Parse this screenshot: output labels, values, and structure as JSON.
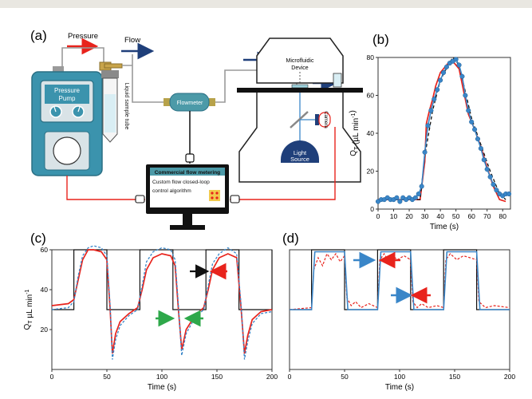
{
  "panels": {
    "a": "(a)",
    "b": "(b)",
    "c": "(c)",
    "d": "(d)"
  },
  "schematic": {
    "pressure_label": "Pressure",
    "flow_label": "Flow",
    "pump_label_1": "Pressure",
    "pump_label_2": "Pump",
    "tube_label": "Liquid sample tube",
    "flowmeter_label": "Flowmeter",
    "device_label_1": "Microfluidic",
    "device_label_2": "Device",
    "camera_label": "Camera",
    "light_label_1": "Light",
    "light_label_2": "Source",
    "controller_title": "Commercial flow metering",
    "controller_text_1": "Custom flow closed-loop",
    "controller_text_2": "control algorithm"
  },
  "colors": {
    "pump_body": "#3b93ad",
    "pump_dark": "#2a6f84",
    "screen": "#d9e3e7",
    "flowmeter": "#4c9aa8",
    "arrow_red": "#e8231c",
    "arrow_navy": "#1f3f7a",
    "blue_marker": "#3a86c8",
    "black": "#111111",
    "green_arrow": "#2ea84a"
  },
  "chart_data": [
    {
      "id": "b",
      "type": "line",
      "xlabel": "Time (s)",
      "ylabel": "Q",
      "ylabel_sub": "T",
      "ylabel_unit": " (µL min",
      "ylabel_exp": "-1",
      "ylabel_end": ")",
      "xlim": [
        0,
        85
      ],
      "ylim": [
        0,
        80
      ],
      "xticks": [
        0,
        10,
        20,
        30,
        40,
        50,
        60,
        70,
        80
      ],
      "yticks": [
        0,
        20,
        40,
        60,
        80
      ],
      "series": [
        {
          "style": "red",
          "x": [
            0,
            10,
            20,
            27,
            30,
            31,
            33,
            35,
            37,
            40,
            45,
            48,
            52,
            55,
            58,
            62,
            66,
            70,
            74,
            78,
            82
          ],
          "y": [
            5,
            5,
            5,
            5,
            25,
            45,
            52,
            58,
            65,
            72,
            77,
            78,
            74,
            62,
            50,
            42,
            33,
            22,
            12,
            5,
            4
          ]
        },
        {
          "style": "dashed-black",
          "x": [
            0,
            27,
            30,
            35,
            40,
            45,
            48,
            52,
            56,
            60,
            66,
            72,
            78,
            82
          ],
          "y": [
            5,
            5,
            28,
            52,
            68,
            76,
            80,
            76,
            62,
            48,
            34,
            20,
            8,
            5
          ]
        },
        {
          "style": "blue-markers",
          "x": [
            0,
            2,
            4,
            6,
            8,
            10,
            12,
            14,
            16,
            18,
            20,
            22,
            24,
            26,
            28,
            30,
            32,
            34,
            36,
            38,
            40,
            42,
            44,
            46,
            48,
            50,
            52,
            54,
            56,
            58,
            60,
            62,
            64,
            66,
            68,
            70,
            72,
            74,
            76,
            78,
            80,
            82,
            84
          ],
          "y": [
            4,
            5,
            5,
            6,
            5,
            5,
            6,
            4,
            6,
            5,
            6,
            5,
            6,
            8,
            12,
            30,
            44,
            52,
            58,
            63,
            68,
            72,
            75,
            77,
            78,
            79,
            76,
            70,
            60,
            52,
            46,
            42,
            37,
            32,
            26,
            21,
            17,
            13,
            10,
            8,
            7,
            8,
            8
          ]
        }
      ]
    },
    {
      "id": "c",
      "type": "line",
      "xlabel": "Time (s)",
      "ylabel": "Q",
      "ylabel_sub": "T",
      "ylabel_unit": " µL min",
      "ylabel_exp": "-1",
      "xlim": [
        0,
        200
      ],
      "ylim": [
        0,
        60
      ],
      "xticks": [
        0,
        50,
        100,
        150,
        200
      ],
      "yticks": [
        20,
        40,
        60
      ],
      "series": [
        {
          "style": "black",
          "x": [
            0,
            20,
            20,
            50,
            50,
            80,
            80,
            110,
            110,
            140,
            140,
            170,
            170,
            200,
            200
          ],
          "y": [
            30,
            30,
            60,
            60,
            30,
            30,
            60,
            60,
            30,
            30,
            60,
            60,
            30,
            30,
            60
          ]
        },
        {
          "style": "red",
          "x": [
            0,
            15,
            20,
            24,
            28,
            33,
            38,
            45,
            50,
            53,
            55,
            58,
            62,
            70,
            78,
            82,
            86,
            92,
            100,
            108,
            112,
            115,
            118,
            122,
            130,
            138,
            142,
            146,
            152,
            160,
            168,
            172,
            175,
            178,
            182,
            190,
            200
          ],
          "y": [
            32,
            33,
            35,
            45,
            55,
            60,
            60,
            59,
            55,
            30,
            8,
            18,
            24,
            28,
            31,
            40,
            50,
            56,
            58,
            57,
            52,
            30,
            10,
            20,
            27,
            31,
            40,
            50,
            56,
            58,
            56,
            30,
            8,
            17,
            25,
            29,
            30
          ]
        },
        {
          "style": "dashed-blue",
          "x": [
            0,
            15,
            20,
            24,
            28,
            33,
            38,
            45,
            50,
            53,
            55,
            58,
            62,
            70,
            78,
            82,
            86,
            92,
            100,
            108,
            112,
            115,
            118,
            122,
            130,
            138,
            142,
            146,
            152,
            160,
            168,
            172,
            175,
            178,
            182,
            190,
            200
          ],
          "y": [
            30,
            31,
            34,
            47,
            57,
            61,
            62,
            61,
            57,
            32,
            5,
            15,
            22,
            27,
            30,
            42,
            54,
            59,
            61,
            60,
            55,
            32,
            7,
            18,
            26,
            30,
            42,
            53,
            58,
            61,
            58,
            32,
            5,
            14,
            23,
            28,
            29
          ]
        }
      ]
    },
    {
      "id": "d",
      "type": "line",
      "xlabel": "Time (s)",
      "xlim": [
        0,
        200
      ],
      "ylim": [
        0,
        60
      ],
      "xticks": [
        0,
        50,
        100,
        150,
        200
      ],
      "series": [
        {
          "style": "black",
          "x": [
            0,
            20,
            20,
            50,
            50,
            80,
            80,
            110,
            110,
            140,
            140,
            170,
            170,
            200
          ],
          "y": [
            30,
            30,
            60,
            60,
            30,
            30,
            60,
            60,
            30,
            30,
            60,
            60,
            30,
            30
          ]
        },
        {
          "style": "dashed-red",
          "x": [
            0,
            20,
            22,
            26,
            30,
            34,
            38,
            42,
            46,
            50,
            52,
            56,
            60,
            65,
            72,
            80,
            82,
            86,
            90,
            94,
            98,
            104,
            110,
            112,
            116,
            120,
            126,
            134,
            140,
            142,
            146,
            152,
            158,
            164,
            170,
            172,
            178,
            186,
            200
          ],
          "y": [
            30,
            31,
            50,
            56,
            52,
            58,
            55,
            58,
            54,
            57,
            36,
            32,
            34,
            31,
            33,
            31,
            55,
            58,
            54,
            57,
            55,
            57,
            55,
            34,
            31,
            33,
            31,
            32,
            31,
            55,
            58,
            55,
            57,
            56,
            55,
            34,
            31,
            32,
            31
          ]
        },
        {
          "style": "blue",
          "x": [
            0,
            20,
            23,
            50,
            53,
            80,
            83,
            110,
            113,
            140,
            143,
            170,
            173,
            200
          ],
          "y": [
            30,
            30,
            59,
            59,
            30,
            30,
            59,
            59,
            30,
            30,
            59,
            59,
            30,
            30
          ]
        }
      ]
    }
  ]
}
